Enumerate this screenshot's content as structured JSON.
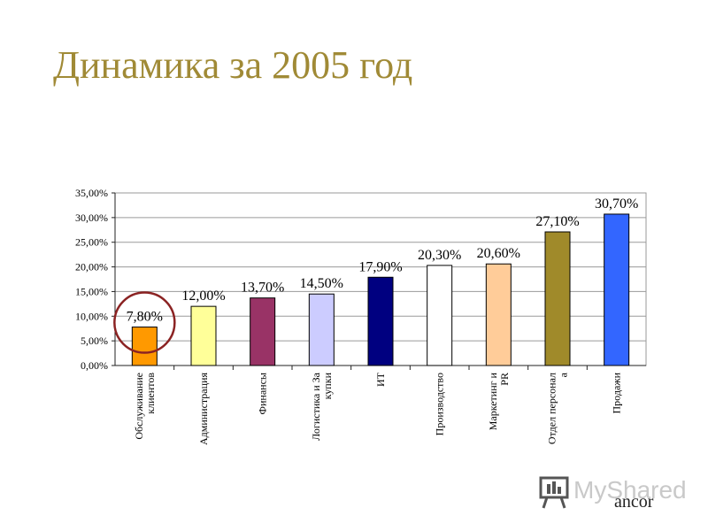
{
  "title": "Динамика за 2005 год",
  "chart_data": {
    "type": "bar",
    "categories": [
      [
        "Обслуживание",
        "клиентов"
      ],
      [
        "Администрация"
      ],
      [
        "Финансы"
      ],
      [
        "Логистика и За",
        "купки"
      ],
      [
        "ИТ"
      ],
      [
        "Производство"
      ],
      [
        "Маркетинг и",
        "PR"
      ],
      [
        "Отдел персонал",
        "а"
      ],
      [
        "Продажи"
      ]
    ],
    "values": [
      7.8,
      12.0,
      13.7,
      14.5,
      17.9,
      20.3,
      20.6,
      27.1,
      30.7
    ],
    "data_labels": [
      "7,80%",
      "12,00%",
      "13,70%",
      "14,50%",
      "17,90%",
      "20,30%",
      "20,60%",
      "27,10%",
      "30,70%"
    ],
    "bar_colors": [
      "#ff9900",
      "#ffff99",
      "#993366",
      "#ccccff",
      "#000080",
      "#ffffff",
      "#ffcc99",
      "#a08a2a",
      "#3366ff"
    ],
    "ylim": [
      0,
      35
    ],
    "yticks": [
      "0,00%",
      "5,00%",
      "10,00%",
      "15,00%",
      "20,00%",
      "25,00%",
      "30,00%",
      "35,00%"
    ],
    "grid": true,
    "highlight_color": "#8b2323",
    "highlighted_category_index": 0
  },
  "watermark": {
    "brand": "MyShared",
    "company": "ancor"
  }
}
